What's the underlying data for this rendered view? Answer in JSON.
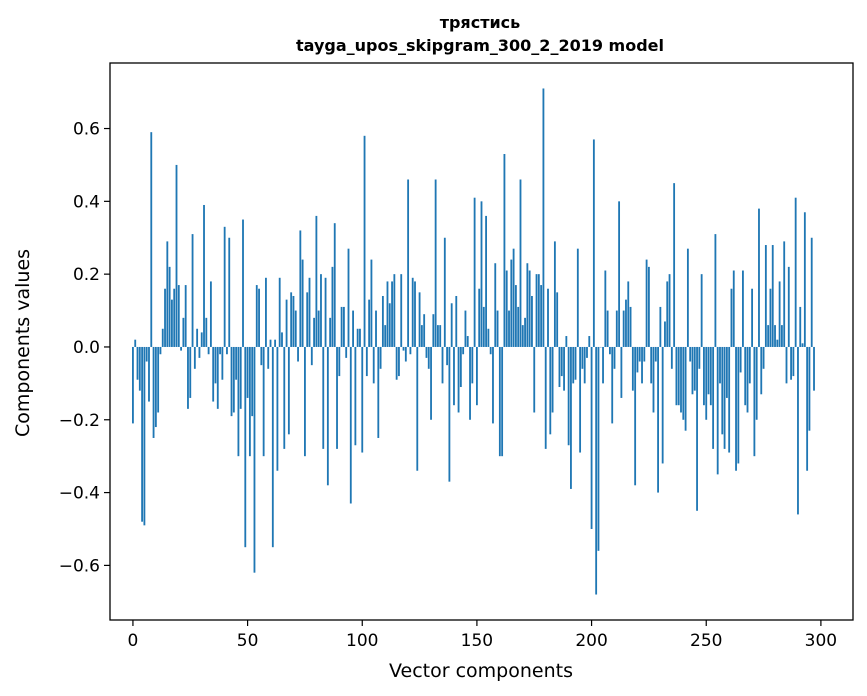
{
  "chart_data": {
    "type": "bar",
    "title": "трястись",
    "subtitle": "tayga_upos_skipgram_300_2_2019 model",
    "xlabel": "Vector components",
    "ylabel": "Components values",
    "xlim": [
      -10,
      314
    ],
    "ylim": [
      -0.75,
      0.78
    ],
    "xticks": [
      0,
      50,
      100,
      150,
      200,
      250,
      300
    ],
    "yticks": [
      -0.6,
      -0.4,
      -0.2,
      0.0,
      0.2,
      0.4,
      0.6
    ],
    "ytick_labels": [
      "−0.6",
      "−0.4",
      "−0.2",
      "0.0",
      "0.2",
      "0.4",
      "0.6"
    ],
    "grid": false,
    "bar_color": "#1f77b4",
    "values": [
      -0.21,
      0.02,
      -0.09,
      -0.12,
      -0.48,
      -0.49,
      -0.04,
      -0.15,
      0.59,
      -0.25,
      -0.22,
      -0.18,
      -0.02,
      0.05,
      0.16,
      0.29,
      0.22,
      0.13,
      0.16,
      0.5,
      0.17,
      -0.01,
      0.08,
      0.17,
      -0.17,
      -0.14,
      0.31,
      -0.06,
      0.05,
      -0.03,
      0.04,
      0.39,
      0.08,
      -0.02,
      0.18,
      -0.15,
      -0.1,
      -0.17,
      -0.02,
      -0.09,
      0.33,
      -0.02,
      0.3,
      -0.19,
      -0.18,
      -0.09,
      -0.3,
      -0.17,
      0.35,
      -0.55,
      -0.14,
      -0.3,
      -0.19,
      -0.62,
      0.17,
      0.16,
      -0.05,
      -0.3,
      0.19,
      -0.06,
      0.02,
      -0.55,
      0.02,
      -0.34,
      0.19,
      0.04,
      -0.28,
      0.13,
      -0.24,
      0.15,
      0.14,
      0.1,
      -0.04,
      0.32,
      0.24,
      -0.3,
      0.15,
      0.19,
      -0.05,
      0.08,
      0.36,
      0.1,
      0.2,
      -0.28,
      0.19,
      -0.38,
      0.08,
      0.22,
      0.34,
      -0.28,
      -0.08,
      0.11,
      0.11,
      -0.03,
      0.27,
      -0.43,
      0.1,
      -0.27,
      0.05,
      0.05,
      -0.29,
      0.58,
      -0.08,
      0.13,
      0.24,
      -0.1,
      0.1,
      -0.25,
      -0.06,
      0.14,
      0.06,
      0.18,
      0.12,
      0.18,
      0.2,
      -0.09,
      -0.08,
      0.2,
      -0.01,
      -0.04,
      0.46,
      -0.02,
      0.19,
      0.18,
      -0.34,
      0.15,
      0.06,
      0.09,
      -0.03,
      -0.06,
      -0.2,
      0.09,
      0.46,
      0.06,
      0.06,
      -0.1,
      0.3,
      -0.05,
      -0.37,
      0.12,
      -0.16,
      0.14,
      -0.18,
      -0.11,
      -0.02,
      0.1,
      0.03,
      -0.2,
      -0.1,
      0.41,
      -0.16,
      0.16,
      0.4,
      0.11,
      0.36,
      0.05,
      -0.02,
      -0.21,
      0.23,
      0.1,
      -0.3,
      -0.3,
      0.53,
      0.21,
      0.1,
      0.24,
      0.27,
      0.17,
      0.11,
      0.46,
      0.06,
      0.08,
      0.23,
      0.21,
      0.14,
      -0.18,
      0.2,
      0.2,
      0.17,
      0.71,
      -0.28,
      0.16,
      -0.24,
      -0.18,
      0.29,
      0.15,
      -0.11,
      -0.08,
      -0.12,
      0.03,
      -0.27,
      -0.39,
      -0.1,
      -0.09,
      0.27,
      -0.29,
      -0.06,
      -0.1,
      -0.03,
      0.03,
      -0.5,
      0.57,
      -0.68,
      -0.56,
      0.0,
      -0.1,
      0.21,
      0.1,
      -0.02,
      -0.21,
      -0.06,
      0.1,
      0.4,
      -0.14,
      0.1,
      0.13,
      0.18,
      0.11,
      -0.12,
      -0.38,
      -0.07,
      -0.04,
      -0.1,
      -0.04,
      0.24,
      0.22,
      -0.1,
      -0.18,
      -0.04,
      -0.4,
      0.11,
      -0.32,
      0.07,
      0.18,
      0.2,
      -0.06,
      0.45,
      -0.16,
      -0.16,
      -0.18,
      -0.2,
      -0.23,
      0.27,
      -0.04,
      -0.13,
      -0.12,
      -0.45,
      -0.06,
      0.2,
      -0.16,
      -0.2,
      -0.13,
      -0.16,
      -0.28,
      0.31,
      -0.35,
      -0.1,
      -0.24,
      -0.28,
      -0.14,
      -0.29,
      0.16,
      0.21,
      -0.34,
      -0.32,
      -0.07,
      0.21,
      -0.16,
      -0.18,
      -0.1,
      0.16,
      -0.3,
      -0.2,
      0.38,
      -0.13,
      -0.06,
      0.28,
      0.06,
      0.16,
      0.28,
      0.06,
      0.02,
      0.18,
      0.06,
      0.29,
      -0.1,
      0.22,
      -0.09,
      -0.08,
      0.41,
      -0.46,
      0.11,
      0.01,
      0.37,
      -0.34,
      -0.23,
      0.3,
      -0.12
    ]
  }
}
